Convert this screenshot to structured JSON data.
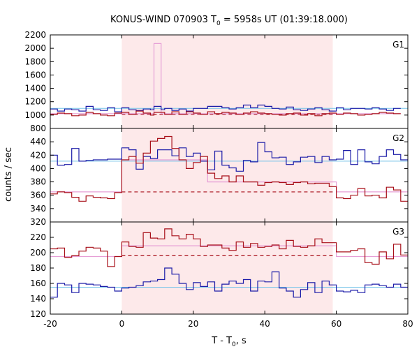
{
  "chart_data": {
    "type": "line",
    "title": "KONUS-WIND 070903 T0 = 5958s UT (01:39:18.000)",
    "title_parts": {
      "prefix": "KONUS-WIND 070903 T",
      "sub": "0",
      "suffix": " = 5958s UT (01:39:18.000)"
    },
    "xlabel": "T - T0, s",
    "xlabel_parts": {
      "prefix": "T - T",
      "sub": "0",
      "suffix": ", s"
    },
    "ylabel": "counts / sec",
    "xlim": [
      -20,
      80
    ],
    "xticks": [
      -20,
      0,
      20,
      40,
      60,
      80
    ],
    "shaded_interval": [
      0,
      59
    ],
    "colors": {
      "shade": "#fde9ea",
      "blue": "#1c1ca8",
      "red": "#a8101a",
      "cyan": "#74c3e8",
      "pink": "#e69fd6"
    },
    "panels": [
      {
        "label": "G1",
        "ylim": [
          800,
          2200
        ],
        "yticks": [
          800,
          1000,
          1200,
          1400,
          1600,
          1800,
          2000,
          2200
        ],
        "ytick_labels": [
          "800",
          "1000",
          "1200",
          "1400",
          "1600",
          "1800",
          "2000",
          "2200"
        ],
        "x_edges": [
          -20,
          -18,
          -16,
          -14,
          -12,
          -10,
          -8,
          -6,
          -4,
          -2,
          0,
          2,
          4,
          6,
          8,
          9,
          11,
          12,
          14,
          16,
          18,
          20,
          22,
          24,
          26,
          28,
          30,
          32,
          34,
          36,
          38,
          40,
          42,
          44,
          46,
          48,
          50,
          52,
          54,
          56,
          58,
          60,
          62,
          64,
          66,
          68,
          70,
          72,
          74,
          76,
          78,
          80
        ],
        "series": [
          {
            "color": "blue",
            "values": [
              1090,
              1060,
              1090,
              1080,
              1060,
              1130,
              1080,
              1070,
              1110,
              1050,
              1110,
              1080,
              1070,
              1090,
              1080,
              1130,
              1080,
              1100,
              1070,
              1090,
              1060,
              1100,
              1100,
              1130,
              1130,
              1110,
              1090,
              1110,
              1150,
              1110,
              1150,
              1130,
              1100,
              1090,
              1120,
              1080,
              1070,
              1090,
              1110,
              1080,
              1060,
              1110,
              1080,
              1100,
              1100,
              1090,
              1110,
              1090,
              1070,
              1100
            ]
          },
          {
            "color": "red",
            "values": [
              1010,
              1030,
              1020,
              990,
              1000,
              1040,
              1020,
              1000,
              990,
              1030,
              1040,
              1010,
              1060,
              1030,
              1000,
              1040,
              1040,
              1010,
              1050,
              1010,
              1050,
              1030,
              1010,
              1050,
              1020,
              1040,
              1030,
              1010,
              1030,
              1050,
              1030,
              1020,
              1010,
              1000,
              1020,
              1030,
              1000,
              1020,
              990,
              1020,
              1030,
              1010,
              1030,
              1020,
              1000,
              1010,
              1020,
              1040,
              1030,
              1020
            ]
          },
          {
            "color": "pink",
            "values": [
              1020,
              1020,
              1020,
              1020,
              1020,
              1020,
              1020,
              1020,
              1020,
              1020,
              1020,
              1020,
              1020,
              1020,
              1020,
              2070,
              1020,
              1020,
              1020,
              1020,
              1020,
              1020,
              1020,
              1020,
              1020,
              1020,
              1020,
              1020,
              1020,
              1020,
              1020,
              1020,
              1020,
              1020,
              1020,
              1020,
              1020,
              1020,
              1020,
              1020,
              1020,
              1020,
              1020,
              1020,
              1020,
              1020,
              1020,
              1020,
              1020,
              1020
            ]
          }
        ],
        "bg_cyan": 1100,
        "bg_red_dashed": 1010
      },
      {
        "label": "G2",
        "ylim": [
          320,
          460
        ],
        "yticks": [
          320,
          340,
          360,
          380,
          400,
          420,
          440
        ],
        "ytick_labels": [
          "320",
          "340",
          "360",
          "380",
          "400",
          "420",
          "440"
        ],
        "x_edges": [
          -20,
          -18,
          -16,
          -14,
          -12,
          -10,
          -8,
          -6,
          -4,
          -2,
          0,
          2,
          4,
          6,
          8,
          10,
          12,
          14,
          16,
          18,
          20,
          22,
          24,
          26,
          28,
          30,
          32,
          34,
          36,
          38,
          40,
          42,
          44,
          46,
          48,
          50,
          52,
          54,
          56,
          58,
          60,
          62,
          64,
          66,
          68,
          70,
          72,
          74,
          76,
          78,
          80
        ],
        "series": [
          {
            "color": "blue",
            "values": [
              420,
              405,
              406,
              430,
              411,
              412,
              413,
              413,
              414,
              414,
              431,
              428,
              399,
              418,
              415,
              428,
              428,
              419,
              431,
              418,
              423,
              411,
              398,
              426,
              405,
              401,
              396,
              412,
              410,
              439,
              425,
              416,
              417,
              406,
              410,
              417,
              418,
              409,
              418,
              413,
              414,
              427,
              406,
              428,
              410,
              407,
              418,
              428,
              421,
              413
            ]
          },
          {
            "color": "red",
            "values": [
              362,
              365,
              364,
              357,
              351,
              359,
              357,
              356,
              355,
              364,
              413,
              418,
              408,
              423,
              441,
              445,
              448,
              430,
              413,
              400,
              409,
              418,
              393,
              385,
              389,
              380,
              389,
              380,
              380,
              375,
              379,
              380,
              379,
              376,
              379,
              380,
              377,
              378,
              378,
              373,
              356,
              355,
              360,
              370,
              359,
              360,
              356,
              372,
              368,
              351
            ]
          },
          {
            "color": "pink",
            "values": [
              365,
              365,
              365,
              365,
              365,
              365,
              365,
              365,
              365,
              365,
              413,
              413,
              413,
              413,
              413,
              413,
              413,
              413,
              413,
              413,
              413,
              413,
              380,
              380,
              380,
              380,
              380,
              380,
              380,
              380,
              380,
              380,
              380,
              380,
              380,
              380,
              380,
              380,
              380,
              380,
              365,
              365,
              365,
              365,
              365,
              365,
              365,
              365,
              365,
              365
            ]
          }
        ],
        "bg_cyan": 411,
        "bg_red_dashed": 365
      },
      {
        "label": "G3",
        "ylim": [
          120,
          240
        ],
        "yticks": [
          120,
          140,
          160,
          180,
          200,
          220
        ],
        "ytick_labels": [
          "120",
          "140",
          "160",
          "180",
          "200",
          "220"
        ],
        "x_edges": [
          -20,
          -18,
          -16,
          -14,
          -12,
          -10,
          -8,
          -6,
          -4,
          -2,
          0,
          2,
          4,
          6,
          8,
          10,
          12,
          14,
          16,
          18,
          20,
          22,
          24,
          26,
          28,
          30,
          32,
          34,
          36,
          38,
          40,
          42,
          44,
          46,
          48,
          50,
          52,
          54,
          56,
          58,
          60,
          62,
          64,
          66,
          68,
          70,
          72,
          74,
          76,
          78,
          80
        ],
        "series": [
          {
            "color": "blue",
            "values": [
              142,
              160,
              158,
              148,
              160,
              159,
              158,
              156,
              155,
              150,
              154,
              155,
              157,
              162,
              163,
              165,
              180,
              172,
              160,
              152,
              161,
              156,
              162,
              150,
              159,
              163,
              160,
              165,
              150,
              163,
              162,
              175,
              154,
              150,
              142,
              152,
              161,
              148,
              163,
              158,
              150,
              149,
              151,
              148,
              158,
              159,
              157,
              155,
              159,
              155
            ]
          },
          {
            "color": "red",
            "values": [
              205,
              206,
              194,
              196,
              202,
              207,
              206,
              202,
              182,
              195,
              214,
              208,
              207,
              226,
              219,
              218,
              231,
              222,
              218,
              224,
              218,
              208,
              210,
              210,
              206,
              203,
              214,
              207,
              212,
              207,
              208,
              210,
              205,
              216,
              208,
              207,
              209,
              218,
              213,
              213,
              201,
              201,
              203,
              205,
              187,
              185,
              201,
              192,
              211,
              197
            ]
          },
          {
            "color": "pink",
            "values": [
              195,
              195,
              195,
              195,
              195,
              195,
              195,
              195,
              195,
              195,
              209,
              209,
              209,
              209,
              209,
              209,
              209,
              209,
              209,
              209,
              209,
              209,
              209,
              209,
              209,
              209,
              209,
              209,
              209,
              209,
              209,
              209,
              209,
              209,
              209,
              209,
              209,
              209,
              209,
              209,
              195,
              195,
              195,
              195,
              195,
              195,
              195,
              195,
              195,
              195
            ]
          }
        ],
        "bg_cyan": 155,
        "bg_red_dashed": 196
      }
    ]
  }
}
